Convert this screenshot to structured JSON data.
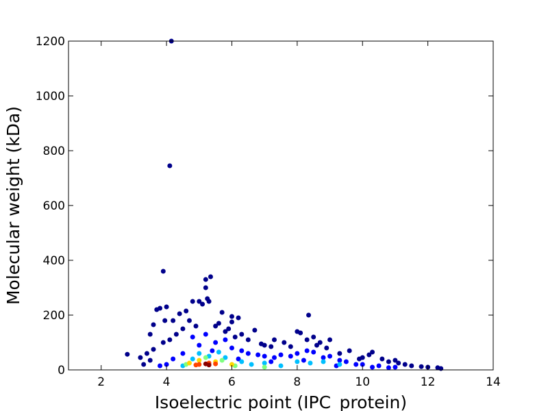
{
  "chart_data": {
    "type": "scatter",
    "xlabel": "Isoelectric point (IPC_protein)",
    "ylabel": "Molecular weight (kDa)",
    "xlim": [
      1,
      14
    ],
    "ylim": [
      0,
      1200
    ],
    "xticks": [
      2,
      4,
      6,
      8,
      10,
      12,
      14
    ],
    "yticks": [
      0,
      200,
      400,
      600,
      800,
      1000,
      1200
    ],
    "series": [
      {
        "color": "#00008b",
        "x": [
          4.15,
          4.1,
          3.9,
          5.2,
          5.35,
          5.2,
          8.35,
          2.8,
          3.2,
          3.8,
          4.0,
          3.7,
          3.95,
          4.2,
          3.6,
          3.5,
          4.4,
          4.8,
          5.0,
          5.1,
          5.3,
          5.25,
          4.6,
          5.7,
          6.0,
          6.2,
          6.0,
          6.7,
          7.3,
          8.0,
          8.1,
          8.5,
          9.0,
          10.3,
          10.2,
          11.0,
          11.8,
          12.0,
          12.3,
          12.4,
          3.4,
          3.6,
          4.5,
          5.6,
          6.3,
          7.6,
          8.7,
          9.6,
          10.6,
          11.3,
          3.3,
          9.9,
          7.0,
          6.5,
          4.7,
          5.9,
          8.3,
          4.3,
          4.9,
          5.5,
          6.1,
          6.9,
          7.8,
          8.9,
          9.3,
          10.0,
          10.8,
          11.5,
          11.1,
          3.5,
          3.9,
          4.1,
          5.8,
          7.2,
          8.6
        ],
        "y": [
          1200,
          745,
          360,
          330,
          340,
          300,
          200,
          57,
          45,
          225,
          230,
          220,
          180,
          180,
          165,
          130,
          205,
          250,
          250,
          240,
          250,
          260,
          215,
          210,
          195,
          190,
          175,
          145,
          110,
          140,
          135,
          120,
          110,
          65,
          55,
          35,
          12,
          10,
          8,
          5,
          60,
          75,
          150,
          170,
          130,
          100,
          100,
          70,
          40,
          20,
          20,
          40,
          90,
          110,
          180,
          150,
          110,
          130,
          160,
          160,
          120,
          95,
          85,
          80,
          60,
          45,
          30,
          15,
          25,
          35,
          100,
          110,
          140,
          85,
          90
        ]
      },
      {
        "color": "#0000ff",
        "x": [
          4.5,
          5.0,
          5.5,
          6.0,
          6.5,
          7.0,
          7.5,
          8.0,
          8.5,
          9.0,
          9.5,
          10.0,
          10.5,
          4.2,
          11.0,
          4.8,
          5.2,
          5.8,
          6.3,
          6.8,
          7.3,
          7.8,
          8.3,
          8.8,
          9.3,
          9.8,
          10.3,
          10.8,
          4.0,
          3.8,
          5.4,
          6.2,
          7.2,
          8.2,
          9.2
        ],
        "y": [
          60,
          90,
          100,
          80,
          60,
          50,
          55,
          60,
          65,
          50,
          30,
          20,
          15,
          40,
          10,
          120,
          130,
          110,
          70,
          55,
          45,
          50,
          70,
          45,
          35,
          20,
          10,
          8,
          20,
          15,
          70,
          40,
          30,
          35,
          15
        ]
      },
      {
        "color": "#00bfff",
        "x": [
          4.8,
          5.3,
          5.8,
          6.3,
          7.0,
          8.0,
          8.8,
          9.3,
          5.0,
          4.5,
          6.6,
          7.5,
          8.4,
          5.6
        ],
        "y": [
          40,
          50,
          45,
          30,
          25,
          30,
          30,
          20,
          60,
          15,
          20,
          15,
          25,
          65
        ]
      },
      {
        "color": "#7fff7f",
        "x": [
          4.6,
          5.7,
          6.1,
          5.2,
          7.0
        ],
        "y": [
          20,
          35,
          15,
          45,
          10
        ]
      },
      {
        "color": "#ffd700",
        "x": [
          4.7,
          5.0,
          5.5,
          6.0
        ],
        "y": [
          25,
          35,
          30,
          20
        ]
      },
      {
        "color": "#ff4500",
        "x": [
          5.0,
          5.3,
          5.5,
          4.9
        ],
        "y": [
          20,
          25,
          22,
          18
        ]
      },
      {
        "color": "#8b0000",
        "x": [
          5.2,
          5.3
        ],
        "y": [
          22,
          18
        ]
      }
    ]
  }
}
